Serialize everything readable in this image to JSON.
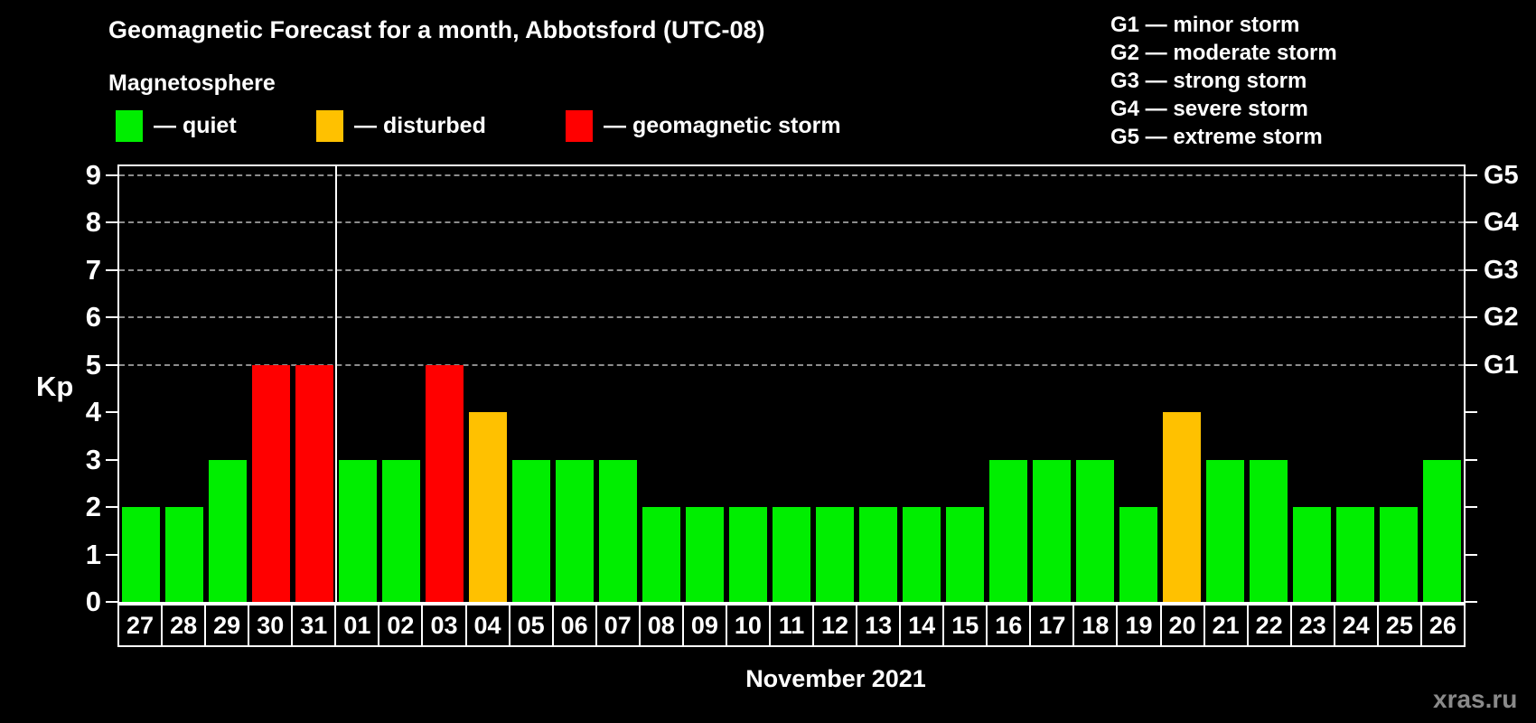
{
  "header": {
    "title": "Geomagnetic Forecast for a month, Abbotsford (UTC-08)",
    "subtitle": "Magnetosphere"
  },
  "legend": {
    "items": [
      {
        "label": "— quiet",
        "status": "quiet",
        "color": "#00ee00"
      },
      {
        "label": "— disturbed",
        "status": "disturbed",
        "color": "#ffc100"
      },
      {
        "label": "— geomagnetic storm",
        "status": "storm",
        "color": "#ff0000"
      }
    ]
  },
  "g_scale_legend": [
    "G1 — minor storm",
    "G2 — moderate storm",
    "G3 — strong storm",
    "G4 — severe storm",
    "G5 — extreme storm"
  ],
  "chart_data": {
    "type": "bar",
    "title": "Geomagnetic Forecast for a month, Abbotsford (UTC-08)",
    "subtitle": "Magnetosphere",
    "ylabel": "Kp",
    "xlabel": "November 2021",
    "ylim": [
      0,
      9.2
    ],
    "y_ticks": [
      0,
      1,
      2,
      3,
      4,
      5,
      6,
      7,
      8,
      9
    ],
    "gridlines_at": [
      5,
      6,
      7,
      8,
      9
    ],
    "right_axis_labels": {
      "5": "G1",
      "6": "G2",
      "7": "G3",
      "8": "G4",
      "9": "G5"
    },
    "grid": "dashed horizontal lines at Kp 5-9 only",
    "legend_position": "top-left quiet/disturbed/storm, top-right G1-G5 scale",
    "month_separator_after_index": 4,
    "categories": [
      "27",
      "28",
      "29",
      "30",
      "31",
      "01",
      "02",
      "03",
      "04",
      "05",
      "06",
      "07",
      "08",
      "09",
      "10",
      "11",
      "12",
      "13",
      "14",
      "15",
      "16",
      "17",
      "18",
      "19",
      "20",
      "21",
      "22",
      "23",
      "24",
      "25",
      "26"
    ],
    "values": [
      2,
      2,
      3,
      5,
      5,
      3,
      3,
      5,
      4,
      3,
      3,
      3,
      2,
      2,
      2,
      2,
      2,
      2,
      2,
      2,
      3,
      3,
      3,
      2,
      4,
      3,
      3,
      2,
      2,
      2,
      3
    ],
    "statuses": [
      "quiet",
      "quiet",
      "quiet",
      "storm",
      "storm",
      "quiet",
      "quiet",
      "storm",
      "disturbed",
      "quiet",
      "quiet",
      "quiet",
      "quiet",
      "quiet",
      "quiet",
      "quiet",
      "quiet",
      "quiet",
      "quiet",
      "quiet",
      "quiet",
      "quiet",
      "quiet",
      "quiet",
      "disturbed",
      "quiet",
      "quiet",
      "quiet",
      "quiet",
      "quiet",
      "quiet"
    ],
    "status_colors": {
      "quiet": "#00ee00",
      "disturbed": "#ffc100",
      "storm": "#ff0000"
    }
  },
  "footer": {
    "xaxis_label": "November 2021",
    "watermark": "xras.ru"
  }
}
